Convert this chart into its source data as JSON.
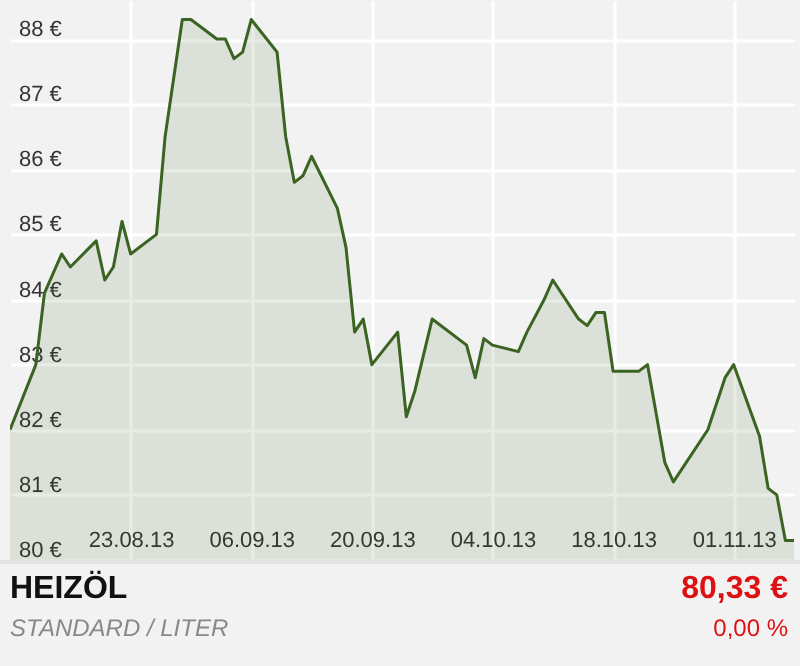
{
  "chart_data": {
    "type": "area",
    "title": "HEIZÖL",
    "subtitle": "STANDARD / LITER",
    "annotations": [
      "80,33 €",
      "0,00 %"
    ],
    "x": [
      "2013-08-09",
      "2013-08-12",
      "2013-08-13",
      "2013-08-15",
      "2013-08-16",
      "2013-08-19",
      "2013-08-20",
      "2013-08-21",
      "2013-08-22",
      "2013-08-23",
      "2013-08-26",
      "2013-08-27",
      "2013-08-29",
      "2013-08-30",
      "2013-09-02",
      "2013-09-03",
      "2013-09-04",
      "2013-09-05",
      "2013-09-06",
      "2013-09-09",
      "2013-09-10",
      "2013-09-11",
      "2013-09-12",
      "2013-09-13",
      "2013-09-16",
      "2013-09-17",
      "2013-09-18",
      "2013-09-19",
      "2013-09-20",
      "2013-09-23",
      "2013-09-24",
      "2013-09-25",
      "2013-09-27",
      "2013-10-01",
      "2013-10-02",
      "2013-10-03",
      "2013-10-04",
      "2013-10-07",
      "2013-10-08",
      "2013-10-10",
      "2013-10-11",
      "2013-10-14",
      "2013-10-15",
      "2013-10-16",
      "2013-10-17",
      "2013-10-18",
      "2013-10-21",
      "2013-10-22",
      "2013-10-24",
      "2013-10-25",
      "2013-10-29",
      "2013-10-31",
      "2013-11-01",
      "2013-11-04",
      "2013-11-05",
      "2013-11-06",
      "2013-11-07",
      "2013-11-08"
    ],
    "series": [
      {
        "color": "#3b6321",
        "values": [
          82.0,
          83.0,
          84.1,
          84.7,
          84.5,
          84.9,
          84.3,
          84.5,
          85.2,
          84.7,
          85.0,
          86.5,
          88.3,
          88.3,
          88.0,
          88.0,
          87.7,
          87.8,
          88.3,
          87.8,
          86.5,
          85.8,
          85.9,
          86.2,
          85.4,
          84.8,
          83.5,
          83.7,
          83.0,
          83.5,
          82.2,
          82.6,
          83.7,
          83.3,
          82.8,
          83.4,
          83.3,
          83.2,
          83.5,
          84.0,
          84.3,
          83.7,
          83.6,
          83.8,
          83.8,
          82.9,
          82.9,
          83.0,
          81.5,
          81.2,
          82.0,
          82.8,
          83.0,
          81.9,
          81.1,
          81.0,
          80.3,
          80.3
        ]
      }
    ],
    "xlim": [
      "2013-08-09",
      "2013-11-08"
    ],
    "xticks": [
      {
        "value": "2013-08-23",
        "label": "23.08.13"
      },
      {
        "value": "2013-09-06",
        "label": "06.09.13"
      },
      {
        "value": "2013-09-20",
        "label": "20.09.13"
      },
      {
        "value": "2013-10-04",
        "label": "04.10.13"
      },
      {
        "value": "2013-10-18",
        "label": "18.10.13"
      },
      {
        "value": "2013-11-01",
        "label": "01.11.13"
      }
    ],
    "ylim": [
      80,
      88.6
    ],
    "yticks": [
      {
        "value": 80,
        "label": "80 €"
      },
      {
        "value": 81,
        "label": "81 €"
      },
      {
        "value": 82,
        "label": "82 €"
      },
      {
        "value": 83,
        "label": "83 €"
      },
      {
        "value": 84,
        "label": "84 €"
      },
      {
        "value": 85,
        "label": "85 €"
      },
      {
        "value": 86,
        "label": "86 €"
      },
      {
        "value": 87,
        "label": "87 €"
      },
      {
        "value": 88,
        "label": "88 €"
      }
    ],
    "grid": true
  }
}
